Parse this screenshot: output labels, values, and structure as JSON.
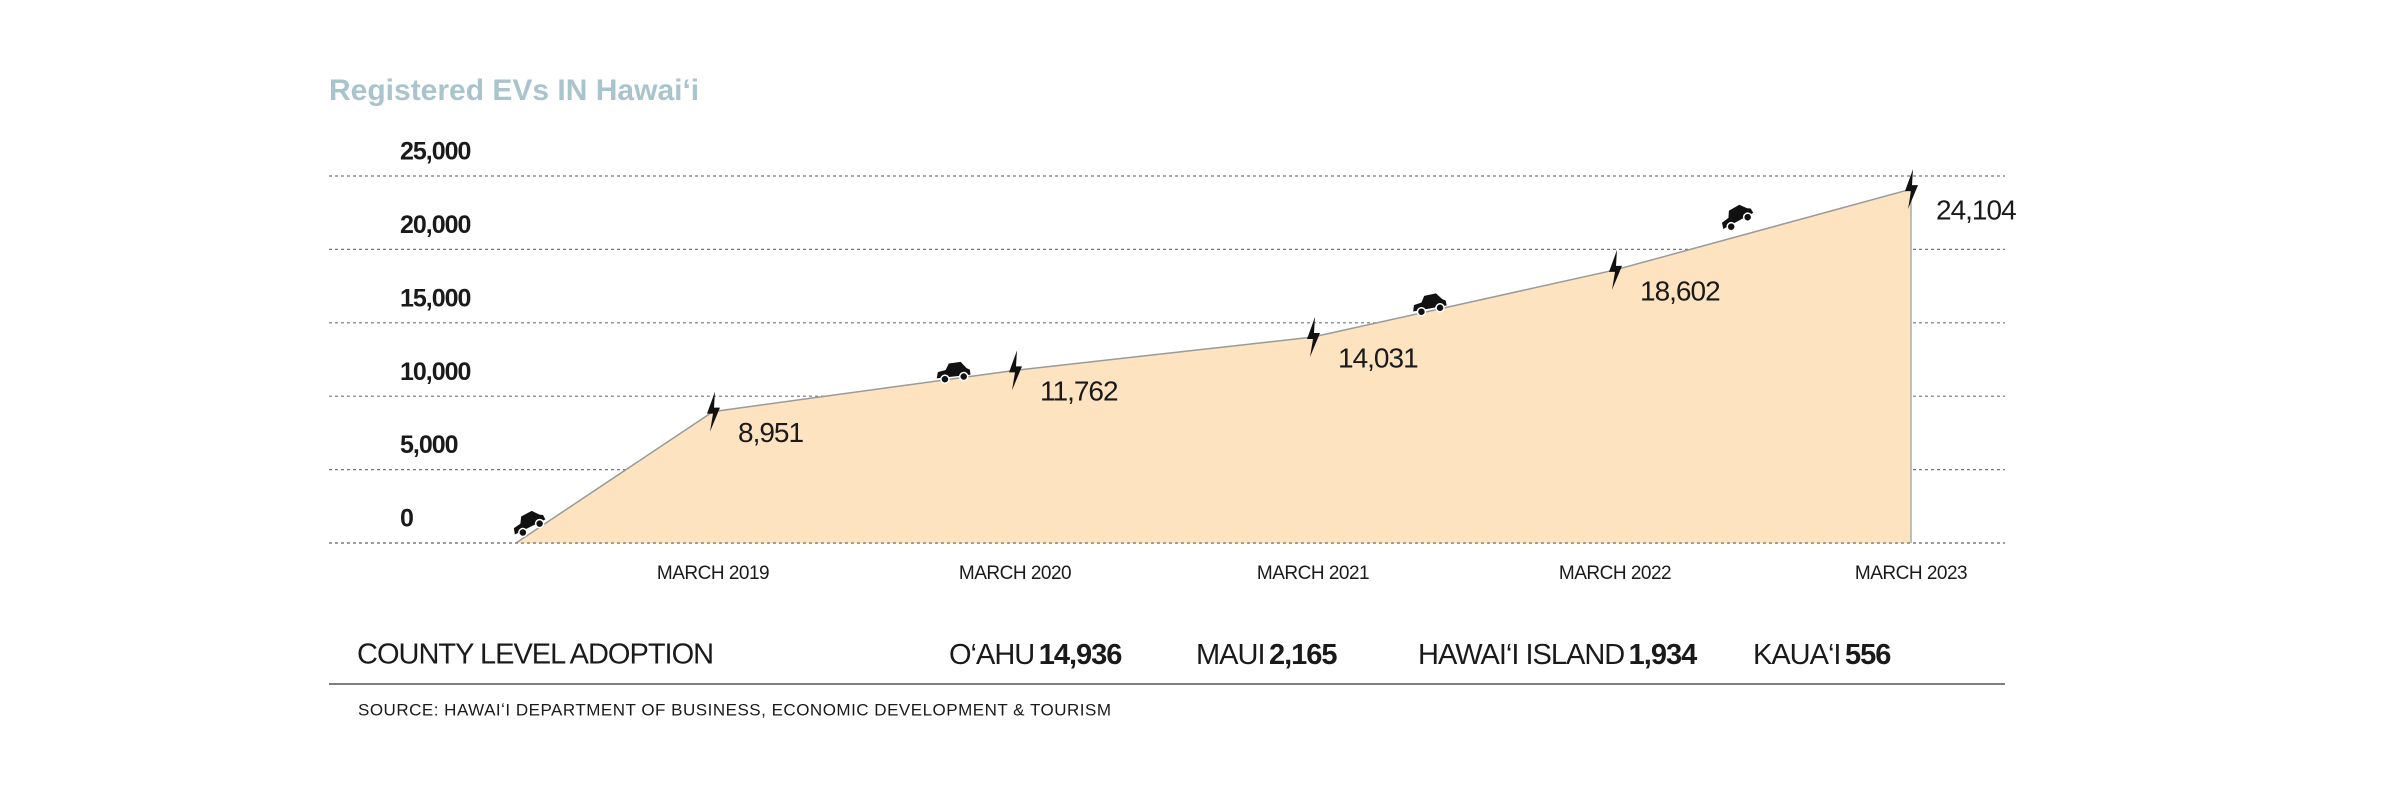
{
  "chart_data": {
    "type": "area",
    "title": "Registered EVs IN Hawaiʻi",
    "categories": [
      null,
      "MARCH 2019",
      "MARCH 2020",
      "MARCH 2021",
      "MARCH 2022",
      "MARCH 2023"
    ],
    "values": [
      0,
      8951,
      11762,
      14031,
      18602,
      24104
    ],
    "value_labels": [
      null,
      "8,951",
      "11,762",
      "14,031",
      "18,602",
      "24,104"
    ],
    "color": "#fde3c0",
    "ylim": [
      0,
      25000
    ],
    "yticks": [
      {
        "value": 0,
        "label": "0"
      },
      {
        "value": 5000,
        "label": "5,000"
      },
      {
        "value": 10000,
        "label": "10,000"
      },
      {
        "value": 15000,
        "label": "15,000"
      },
      {
        "value": 20000,
        "label": "20,000"
      },
      {
        "value": 25000,
        "label": "25,000"
      }
    ],
    "grid": true
  },
  "county": {
    "heading": "COUNTY LEVEL ADOPTION",
    "items": [
      {
        "name": "O‘AHU",
        "value": "14,936"
      },
      {
        "name": "MAUI",
        "value": "2,165"
      },
      {
        "name": "HAWAI‘I ISLAND",
        "value": "1,934"
      },
      {
        "name": "KAUA‘I",
        "value": "556"
      }
    ]
  },
  "source": "SOURCE: HAWAIʻI DEPARTMENT OF BUSINESS, ECONOMIC DEVELOPMENT & TOURISM"
}
